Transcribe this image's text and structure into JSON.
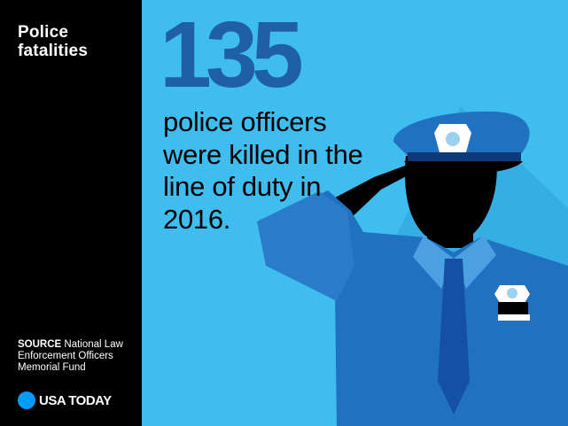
{
  "sidebar": {
    "title": "Police fatalities",
    "source_label": "SOURCE",
    "source_text": "National Law Enforcement Officers Memorial Fund",
    "logo_text": "USA TODAY"
  },
  "main": {
    "headline_number": "135",
    "statement": "police officers were killed in the line of duty in 2016."
  },
  "colors": {
    "background": "#3fbdee",
    "uniform": "#2071c0",
    "headline": "#1f5fa6",
    "silhouette": "#000000",
    "logo_dot": "#009bff"
  },
  "icons": [
    "saluting-officer-illustration",
    "cap-badge-icon",
    "shirt-badge-icon",
    "usa-today-dot-icon"
  ]
}
